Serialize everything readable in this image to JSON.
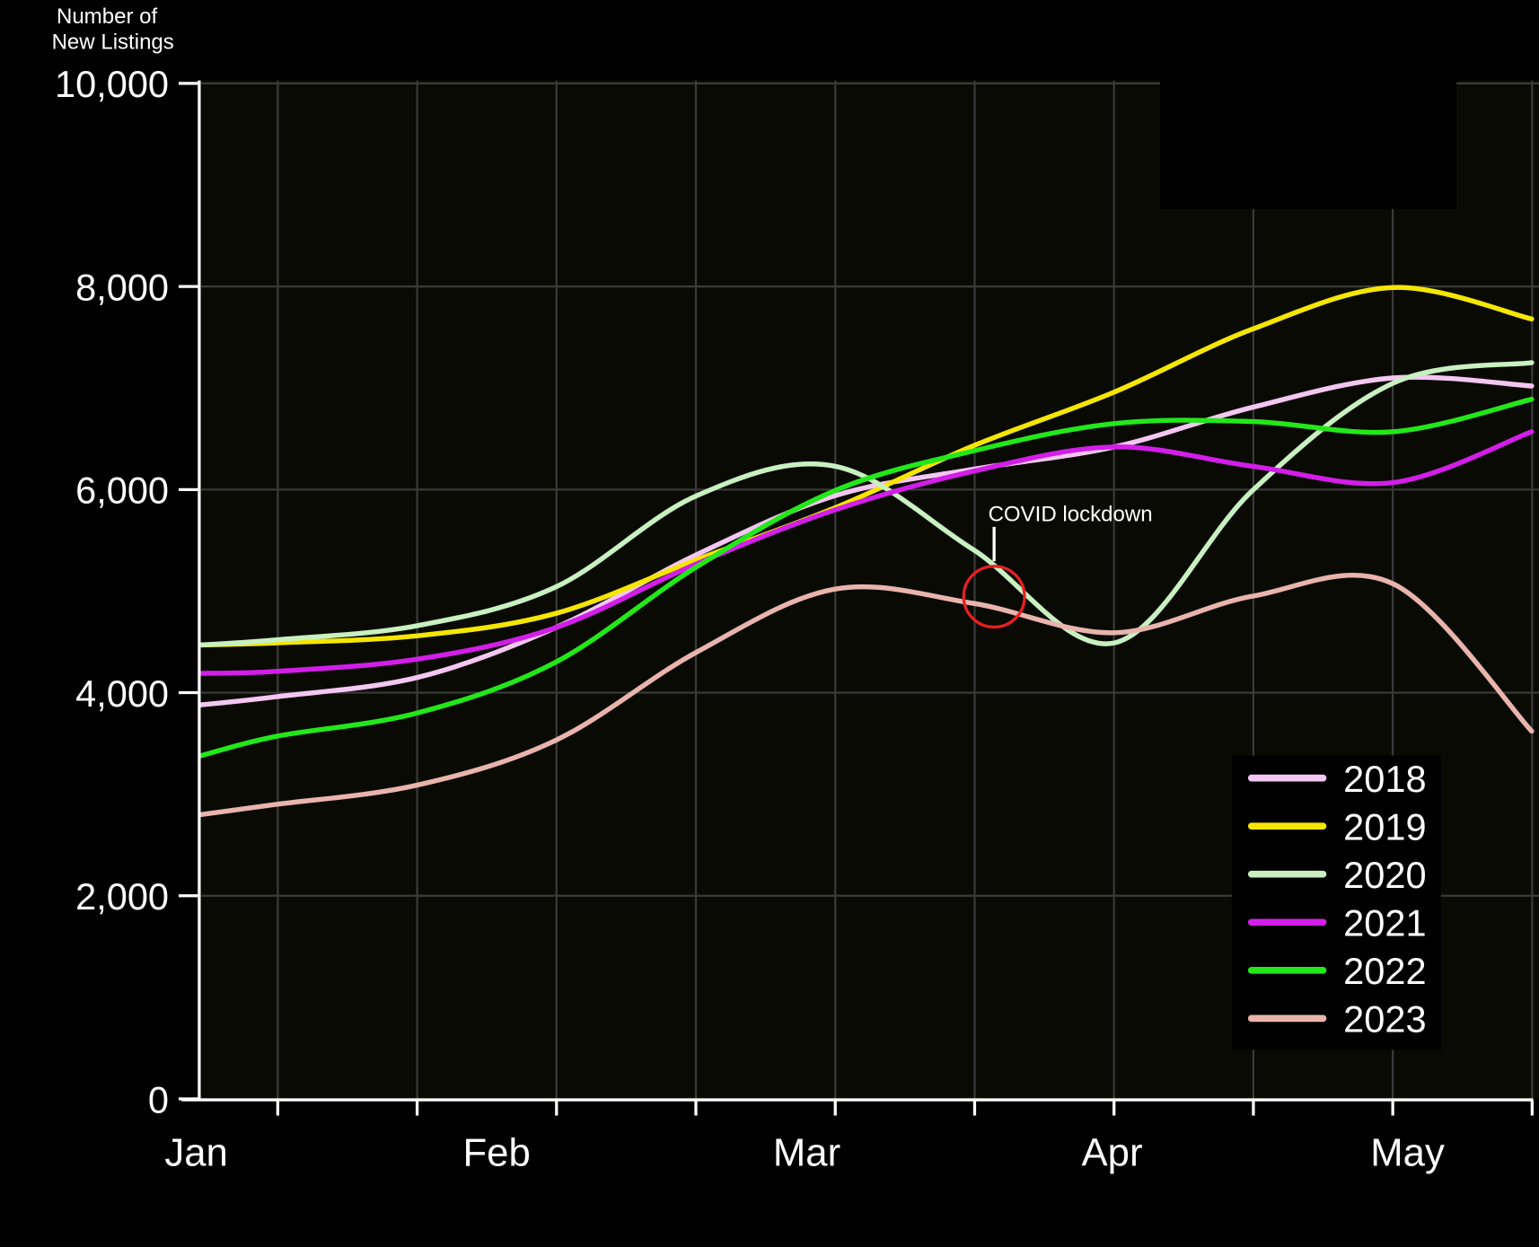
{
  "chart_data": {
    "type": "line",
    "title": "",
    "ylabel": "Number of New Listings",
    "ylabel_lines": [
      "Number of",
      "New Listings"
    ],
    "xlabel": "",
    "x_ticks": [
      "Jan",
      "Feb",
      "Mar",
      "Apr",
      "May"
    ],
    "x_tick_values": [
      0,
      1,
      2,
      3,
      4
    ],
    "y_ticks": [
      "0",
      "2,000",
      "4,000",
      "6,000",
      "8,000",
      "10,000"
    ],
    "y_tick_values": [
      0,
      2000,
      4000,
      6000,
      8000,
      10000
    ],
    "ylim": [
      0,
      10000
    ],
    "xlim": [
      0,
      4.43
    ],
    "grid": true,
    "legend_position": "bottom-right",
    "x": [
      0,
      0.25,
      0.72,
      1.18,
      1.65,
      2.11,
      2.57,
      3.04,
      3.5,
      3.97,
      4.43
    ],
    "series": [
      {
        "name": "2018",
        "color": "#f4c6f2",
        "values": [
          3880,
          3960,
          4150,
          4640,
          5360,
          5940,
          6200,
          6420,
          6810,
          7100,
          7020
        ]
      },
      {
        "name": "2019",
        "color": "#f5e600",
        "values": [
          4470,
          4490,
          4560,
          4780,
          5310,
          5820,
          6430,
          6960,
          7580,
          7990,
          7680
        ]
      },
      {
        "name": "2020",
        "color": "#c8f0c0",
        "values": [
          4470,
          4520,
          4660,
          5040,
          5940,
          6230,
          5410,
          4490,
          5990,
          7050,
          7250
        ]
      },
      {
        "name": "2021",
        "color": "#d21ee8",
        "values": [
          4190,
          4210,
          4330,
          4640,
          5270,
          5800,
          6180,
          6420,
          6230,
          6070,
          6570
        ]
      },
      {
        "name": "2022",
        "color": "#22e81a",
        "values": [
          3380,
          3570,
          3800,
          4300,
          5240,
          5990,
          6380,
          6650,
          6670,
          6570,
          6890
        ]
      },
      {
        "name": "2023",
        "color": "#e8b4ac",
        "values": [
          2800,
          2900,
          3090,
          3530,
          4400,
          5020,
          4880,
          4590,
          4950,
          5070,
          3620
        ]
      }
    ],
    "annotations": [
      {
        "text": "COVID lockdown",
        "x": 2.64,
        "y": 4820,
        "marker_color": "#e82020"
      }
    ]
  }
}
